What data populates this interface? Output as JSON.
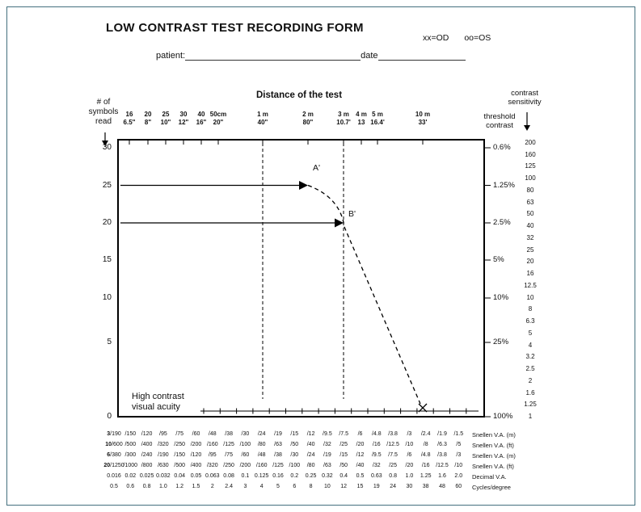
{
  "window": {
    "title": "LOW CONTRAST TEST RECORDING FORM"
  },
  "legend": {
    "od": "xx=OD",
    "os": "oo=OS"
  },
  "form": {
    "patient_label": "patient:",
    "date_label": "date"
  },
  "chart_data": {
    "type": "line",
    "title": "Distance of the test",
    "x_axis": {
      "scale": "log",
      "distances_m": [
        0.16,
        0.2,
        0.25,
        0.3,
        0.4,
        0.5,
        1,
        2,
        3,
        4,
        5,
        10
      ],
      "ticks": [
        {
          "metric": "16",
          "imperial": "6.5\""
        },
        {
          "metric": "20",
          "imperial": "8\""
        },
        {
          "metric": "25",
          "imperial": "10\""
        },
        {
          "metric": "30",
          "imperial": "12\""
        },
        {
          "metric": "40",
          "imperial": "16\""
        },
        {
          "metric": "50cm",
          "imperial": "20\""
        },
        {
          "metric": "1 m",
          "imperial": "40\""
        },
        {
          "metric": "2 m",
          "imperial": "80\""
        },
        {
          "metric": "3 m",
          "imperial": "10.7'"
        },
        {
          "metric": "4 m",
          "imperial": "13"
        },
        {
          "metric": "5 m",
          "imperial": "16.4'"
        },
        {
          "metric": "10 m",
          "imperial": "33'"
        }
      ]
    },
    "y_axis_left": {
      "label_lines": [
        "# of",
        "symbols",
        "read"
      ],
      "ticks": [
        "30",
        "25",
        "20",
        "15",
        "10",
        "5",
        "0"
      ]
    },
    "y_axis_threshold": {
      "label_lines": [
        "threshold",
        "contrast"
      ],
      "ticks": [
        "0.6%",
        "1.25%",
        "2.5%",
        "5%",
        "10%",
        "25%",
        "100%"
      ]
    },
    "y_axis_sensitivity": {
      "label_lines": [
        "contrast",
        "sensitivity"
      ],
      "ticks": [
        "200",
        "160",
        "125",
        "100",
        "80",
        "63",
        "50",
        "40",
        "32",
        "25",
        "20",
        "16",
        "12.5",
        "10",
        "8",
        "6.3",
        "5",
        "4",
        "3.2",
        "2.5",
        "2",
        "1.6",
        "1.25",
        "1"
      ]
    },
    "guide_lines_m": [
      1,
      3
    ],
    "points": [
      {
        "label": "A'",
        "distance_m": 2,
        "symbols_read": 25,
        "marker": "arrow"
      },
      {
        "label": "B'",
        "distance_m": 3,
        "symbols_read": 20,
        "marker": "arrow"
      },
      {
        "label": "",
        "distance_m": 10,
        "symbols_read": 0,
        "marker": "x"
      }
    ],
    "annotation_lines": [
      "High contrast",
      "visual acuity"
    ]
  },
  "table": {
    "rows": [
      {
        "lead": "3",
        "cells": [
          "/190",
          "/150",
          "/120",
          "/95",
          "/75",
          "/60",
          "/48",
          "/38",
          "/30",
          "/24",
          "/19",
          "/15",
          "/12",
          "/9.5",
          "/7.5",
          "/6",
          "/4.8",
          "/3.8",
          "/3",
          "/2.4",
          "/1.9",
          "/1.5"
        ],
        "unit": "Snellen V.A. (m)"
      },
      {
        "lead": "10",
        "cells": [
          "/600",
          "/500",
          "/400",
          "/320",
          "/250",
          "/200",
          "/160",
          "/125",
          "/100",
          "/80",
          "/63",
          "/50",
          "/40",
          "/32",
          "/25",
          "/20",
          "/16",
          "/12.5",
          "/10",
          "/8",
          "/6.3",
          "/5"
        ],
        "unit": "Snellen V.A. (ft)"
      },
      {
        "lead": "6",
        "cells": [
          "/380",
          "/300",
          "/240",
          "/190",
          "/150",
          "/120",
          "/95",
          "/75",
          "/60",
          "/48",
          "/38",
          "/30",
          "/24",
          "/19",
          "/15",
          "/12",
          "/9.5",
          "/7.5",
          "/6",
          "/4.8",
          "/3.8",
          "/3"
        ],
        "unit": "Snellen V.A. (m)"
      },
      {
        "lead": "20",
        "cells": [
          "/1250",
          "/1000",
          "/800",
          "/630",
          "/500",
          "/400",
          "/320",
          "/250",
          "/200",
          "/160",
          "/125",
          "/100",
          "/80",
          "/63",
          "/50",
          "/40",
          "/32",
          "/25",
          "/20",
          "/16",
          "/12.5",
          "/10"
        ],
        "unit": "Snellen V.A. (ft)"
      },
      {
        "lead": "",
        "cells": [
          "0.016",
          "0.02",
          "0.025",
          "0.032",
          "0.04",
          "0.05",
          "0.063",
          "0.08",
          "0.1",
          "0.125",
          "0.16",
          "0.2",
          "0.25",
          "0.32",
          "0.4",
          "0.5",
          "0.63",
          "0.8",
          "1.0",
          "1.25",
          "1.6",
          "2.0"
        ],
        "unit": "Decimal V.A."
      },
      {
        "lead": "",
        "cells": [
          "0.5",
          "0.6",
          "0.8",
          "1.0",
          "1.2",
          "1.5",
          "2",
          "2.4",
          "3",
          "4",
          "5",
          "6",
          "8",
          "10",
          "12",
          "15",
          "19",
          "24",
          "30",
          "38",
          "48",
          "60"
        ],
        "unit": "Cycles/degree"
      }
    ]
  }
}
